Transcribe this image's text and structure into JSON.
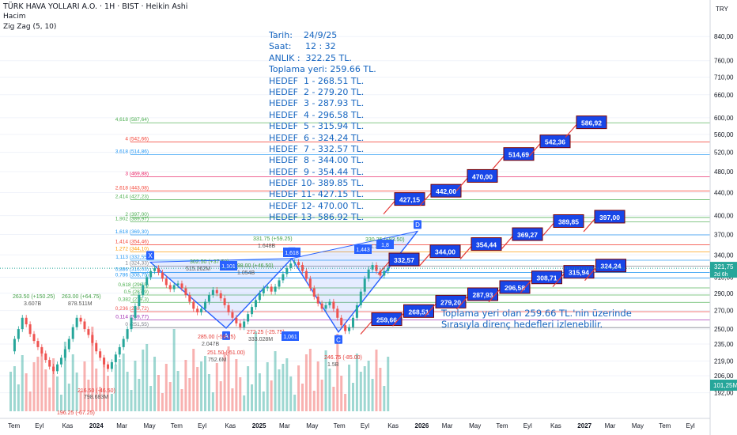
{
  "header": {
    "symbol_line": "TÜRK HAVA YOLLARI A.O. · 1H · BIST · Heikin Ashi",
    "volume_label": "Hacim",
    "indicator_label": "Zig Zag (5, 10)"
  },
  "info_box": [
    "Tarih:    24/9/25",
    "Saat:     12 : 32",
    "ANLIK :  322.25 TL.",
    "Toplama yeri: 259.66 TL.",
    "HEDEF  1 - 268.51 TL.",
    "HEDEF  2 - 279.20 TL.",
    "HEDEF  3 - 287.93 TL.",
    "HEDEF  4 - 296.58 TL.",
    "HEDEF  5 - 315.94 TL.",
    "HEDEF  6 - 324.24 TL.",
    "HEDEF  7 - 332.57 TL.",
    "HEDEF  8 - 344.00 TL.",
    "HEDEF  9 - 354.44 TL.",
    "HEDEF 10- 389.85 TL.",
    "HEDEF 11- 427.15 TL.",
    "HEDEF 12- 470.00 TL.",
    "HEDEF 13- 586.92 TL."
  ],
  "note_lines": [
    "Toplama yeri olan 259.66 TL.'nin üzerinde",
    "Sırasıyla direnç hedefleri izlenebilir."
  ],
  "colors": {
    "target_label_fill": "#1846e8",
    "target_label_text": "#ffffff",
    "info_text": "#1565c0",
    "pattern_line": "#2962ff",
    "up": "#26a69a",
    "down": "#ef5350",
    "current_price": "#26a69a"
  },
  "chart_data": {
    "type": "candlestick",
    "y_axis": {
      "currency": "TRY",
      "ticks": [
        "840,00",
        "760,00",
        "710,00",
        "660,00",
        "600,00",
        "560,00",
        "520,00",
        "480,00",
        "440,00",
        "400,00",
        "370,00",
        "340,00",
        "310,00",
        "290,00",
        "270,00",
        "250,00",
        "235,00",
        "219,00",
        "206,00",
        "192,00"
      ],
      "range": [
        185,
        880
      ],
      "scale": "log"
    },
    "x_axis": {
      "ticks": [
        "Tem",
        "Eyl",
        "Kas",
        "2024",
        "Mar",
        "May",
        "Tem",
        "Eyl",
        "Kas",
        "2025",
        "Mar",
        "May",
        "Tem",
        "Eyl",
        "Kas",
        "2026",
        "Mar",
        "May",
        "Tem",
        "Eyl",
        "Kas",
        "2027",
        "Mar",
        "May",
        "Tem",
        "Eyl"
      ]
    },
    "current_price": "321,75",
    "current_time_label": "2d 6h",
    "volume_label": "101,25M",
    "fib_levels": [
      {
        "label": "4,618 (587,64)",
        "value": 587.64,
        "color": "#4caf50"
      },
      {
        "label": "4 (542,66)",
        "value": 542.66,
        "color": "#f44336"
      },
      {
        "label": "3,618 (514,86)",
        "value": 514.86,
        "color": "#2196f3"
      },
      {
        "label": "3 (469,88)",
        "value": 469.88,
        "color": "#e91e63"
      },
      {
        "label": "2,618 (443,08)",
        "value": 443.08,
        "color": "#f44336"
      },
      {
        "label": "2,414 (427,23)",
        "value": 427.23,
        "color": "#4caf50"
      },
      {
        "label": "2 (397,00)",
        "value": 397.0,
        "color": "#4caf50"
      },
      {
        "label": "1,902 (389,97)",
        "value": 389.97,
        "color": "#4caf50"
      },
      {
        "label": "1,618 (369,30)",
        "value": 369.3,
        "color": "#2196f3"
      },
      {
        "label": "1,414 (354,46)",
        "value": 354.46,
        "color": "#f44336"
      },
      {
        "label": "1,272 (344,10)",
        "value": 344.1,
        "color": "#ff9800"
      },
      {
        "label": "1,113 (332,55)",
        "value": 332.55,
        "color": "#2196f3"
      },
      {
        "label": "1 (324,33)",
        "value": 324.33,
        "color": "#787b86"
      },
      {
        "label": "0,886 (316,03)",
        "value": 316.03,
        "color": "#2196f3"
      },
      {
        "label": "0,786 (308,75)",
        "value": 308.75,
        "color": "#2196f3"
      },
      {
        "label": "0,618 (296,5)",
        "value": 296.5,
        "color": "#4caf50"
      },
      {
        "label": "0,5 (287,9)",
        "value": 287.9,
        "color": "#4caf50"
      },
      {
        "label": "0,382 (279,3)",
        "value": 279.3,
        "color": "#4caf50"
      },
      {
        "label": "0,236 (268,72)",
        "value": 268.72,
        "color": "#ef5350"
      },
      {
        "label": "0,114 (259,77)",
        "value": 259.77,
        "color": "#9c27b0"
      },
      {
        "label": "0 (251,55)",
        "value": 251.55,
        "color": "#787b86"
      }
    ],
    "targets_lower": [
      {
        "label": "259,66",
        "value": 259.66
      },
      {
        "label": "268,51",
        "value": 268.51
      },
      {
        "label": "279,20",
        "value": 279.2
      },
      {
        "label": "287,93",
        "value": 287.93
      },
      {
        "label": "296,58",
        "value": 296.58
      },
      {
        "label": "308,71",
        "value": 308.71
      },
      {
        "label": "315,94",
        "value": 315.94
      },
      {
        "label": "324,24",
        "value": 324.24
      }
    ],
    "targets_upper": [
      {
        "label": "332,57",
        "value": 332.57
      },
      {
        "label": "344,00",
        "value": 344.0
      },
      {
        "label": "354,44",
        "value": 354.44
      },
      {
        "label": "369,27",
        "value": 369.27
      },
      {
        "label": "389,85",
        "value": 389.85
      },
      {
        "label": "397,00",
        "value": 397.0
      }
    ],
    "targets_top": [
      {
        "label": "427,15",
        "value": 427.15
      },
      {
        "label": "442,00",
        "value": 442.0
      },
      {
        "label": "470,00",
        "value": 470.0
      },
      {
        "label": "514,69",
        "value": 514.69
      },
      {
        "label": "542,36",
        "value": 542.36
      },
      {
        "label": "586,92",
        "value": 586.92
      }
    ],
    "pattern_points": [
      {
        "label": "X",
        "value": 330
      },
      {
        "label": "A",
        "value": 251
      },
      {
        "label": "B",
        "value": 335
      },
      {
        "label": "C",
        "value": 247
      },
      {
        "label": "D",
        "value": 375
      }
    ],
    "zigzag_labels": [
      "263.50 (+150.25)",
      "3.607B",
      "263.00 (+64.75)",
      "878.511M",
      "216.50 (-46.50)",
      "798.683M",
      "196.25 (-67.25)",
      "302.50 (+37.50)",
      "515.262M",
      "285.00 (-59.25)",
      "2.047B",
      "251.50 (-51.00)",
      "752.6M",
      "298.00 (+46.50)",
      "1.054B",
      "331.75 (+59.25)",
      "1.648B",
      "272.25 (-25.75)",
      "333.028M",
      "246.75 (-85.00)",
      "1.5B",
      "330.25 (+83.50)",
      "1.105B",
      "1,101",
      "1,618",
      "1,061",
      "1,443",
      "1,8"
    ],
    "price_series": [
      228,
      240,
      250,
      262,
      255,
      245,
      238,
      232,
      226,
      220,
      214,
      210,
      216,
      222,
      230,
      240,
      252,
      262,
      258,
      250,
      244,
      236,
      228,
      222,
      216,
      212,
      218,
      225,
      232,
      240,
      250,
      262,
      275,
      288,
      300,
      310,
      318,
      322,
      316,
      308,
      300,
      295,
      300,
      302,
      296,
      288,
      280,
      272,
      268,
      272,
      280,
      288,
      294,
      290,
      284,
      276,
      268,
      262,
      256,
      252,
      258,
      266,
      274,
      282,
      290,
      296,
      298,
      292,
      298,
      306,
      314,
      322,
      328,
      330,
      326,
      318,
      308,
      296,
      286,
      278,
      272,
      276,
      280,
      272,
      262,
      254,
      248,
      252,
      262,
      276,
      292,
      308,
      320,
      326,
      318,
      312,
      318,
      322
    ]
  }
}
